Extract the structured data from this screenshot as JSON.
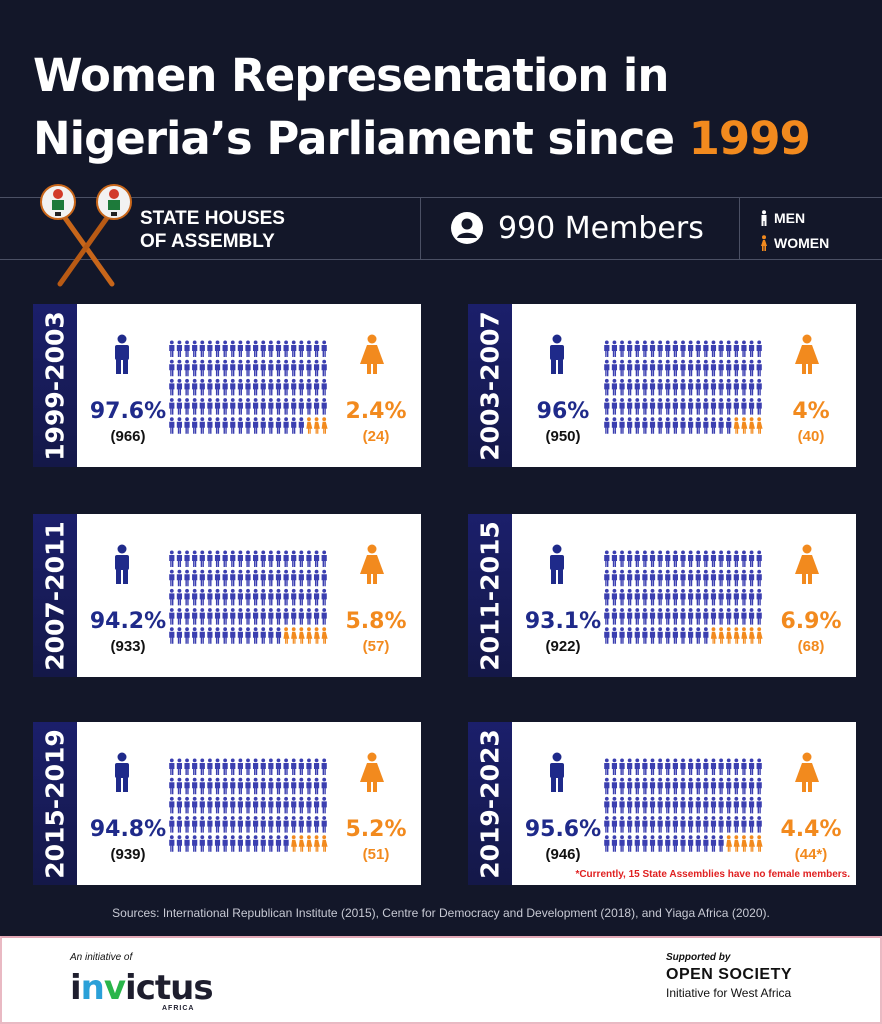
{
  "title": {
    "line1": "Women Representation in",
    "line2_prefix": "Nigeria’s Parliament since ",
    "line2_accent": "1999"
  },
  "band": {
    "label_line1": "STATE HOUSES",
    "label_line2": "OF ASSEMBLY",
    "members": "990 Members",
    "legend_men": "MEN",
    "legend_women": "WOMEN"
  },
  "colors": {
    "background": "#131729",
    "men": "#1f2a8a",
    "men_icon": "#3b3fb0",
    "women": "#f28a1e",
    "tab": "#1b1f6b",
    "note": "#e02020"
  },
  "icons": {
    "members": "user-circle-icon",
    "men": "man-icon",
    "women": "woman-icon",
    "emblem": "mace-emblem-icon"
  },
  "periods": [
    {
      "period": "1999-2003",
      "men_pct": "97.6%",
      "men_count": "(966)",
      "women_pct": "2.4%",
      "women_count": "(24)",
      "men": 966,
      "women": 24,
      "note": ""
    },
    {
      "period": "2003-2007",
      "men_pct": "96%",
      "men_count": "(950)",
      "women_pct": "4%",
      "women_count": "(40)",
      "men": 950,
      "women": 40,
      "note": ""
    },
    {
      "period": "2007-2011",
      "men_pct": "94.2%",
      "men_count": "(933)",
      "women_pct": "5.8%",
      "women_count": "(57)",
      "men": 933,
      "women": 57,
      "note": ""
    },
    {
      "period": "2011-2015",
      "men_pct": "93.1%",
      "men_count": "(922)",
      "women_pct": "6.9%",
      "women_count": "(68)",
      "men": 922,
      "women": 68,
      "note": ""
    },
    {
      "period": "2015-2019",
      "men_pct": "94.8%",
      "men_count": "(939)",
      "women_pct": "5.2%",
      "women_count": "(51)",
      "men": 939,
      "women": 51,
      "note": ""
    },
    {
      "period": "2019-2023",
      "men_pct": "95.6%",
      "men_count": "(946)",
      "women_pct": "4.4%",
      "women_count": "(44*)",
      "men": 946,
      "women": 44,
      "note": "*Currently, 15 State Assemblies have no female members."
    }
  ],
  "sources": "Sources: International Republican Institute (2015), Centre for Democracy and Development (2018), and Yiaga Africa (2020).",
  "footer": {
    "initiative_label": "An initiative of",
    "brand_part1": "i",
    "brand_v1": "n",
    "brand_v2": "v",
    "brand_part2": "ictus",
    "brand_sub": "AFRICA",
    "supported_label": "Supported by",
    "supporter": "OPEN SOCIETY",
    "supporter_sub": "Initiative for West Africa"
  }
}
